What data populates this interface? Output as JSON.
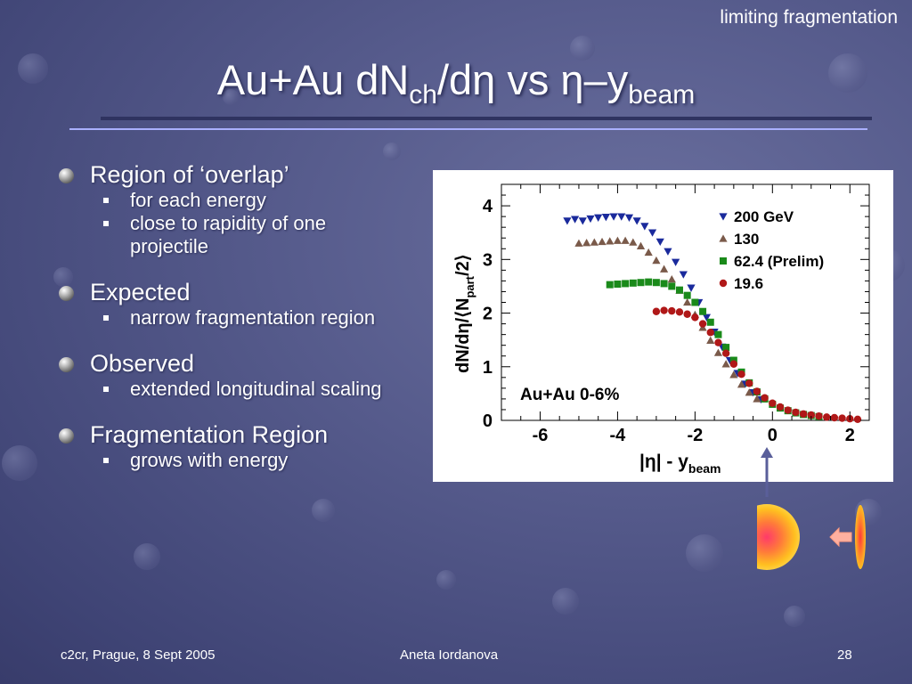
{
  "corner_label": "limiting fragmentation",
  "title": {
    "pre": "Au+Au dN",
    "sub1": "ch",
    "mid": "/dη vs η–y",
    "sub2": "beam"
  },
  "bullets": [
    {
      "text": "Region of ‘overlap’",
      "subs": [
        "for each energy",
        "close to rapidity of one projectile"
      ]
    },
    {
      "text": "Expected",
      "subs": [
        "narrow fragmentation region"
      ]
    },
    {
      "text": "Observed",
      "subs": [
        "extended longitudinal scaling"
      ]
    },
    {
      "text": "Fragmentation Region",
      "subs": [
        "grows with energy"
      ]
    }
  ],
  "footer": {
    "left": "c2cr, Prague, 8 Sept 2005",
    "center": "Aneta Iordanova",
    "right": "28"
  },
  "chart_data": {
    "type": "scatter",
    "xlabel": "|η| - y",
    "xlabel_sub": "beam",
    "ylabel": "dN/dη/⟨N",
    "ylabel_sub": "part",
    "ylabel_end": "/2⟩",
    "xlim": [
      -7,
      2.5
    ],
    "ylim": [
      0,
      4.4
    ],
    "x_ticks": [
      -6,
      -4,
      -2,
      0,
      2
    ],
    "y_ticks": [
      0,
      1,
      2,
      3,
      4
    ],
    "annotation": "Au+Au 0-6%",
    "legend_placement": "top-right",
    "series": [
      {
        "name": "200 GeV",
        "marker": "triangle-down",
        "color": "#1a2a9c",
        "points": [
          [
            -5.3,
            3.72
          ],
          [
            -5.1,
            3.75
          ],
          [
            -4.9,
            3.72
          ],
          [
            -4.7,
            3.76
          ],
          [
            -4.5,
            3.78
          ],
          [
            -4.3,
            3.79
          ],
          [
            -4.1,
            3.8
          ],
          [
            -3.9,
            3.8
          ],
          [
            -3.7,
            3.78
          ],
          [
            -3.5,
            3.72
          ],
          [
            -3.3,
            3.62
          ],
          [
            -3.1,
            3.5
          ],
          [
            -2.9,
            3.33
          ],
          [
            -2.7,
            3.15
          ],
          [
            -2.5,
            2.95
          ],
          [
            -2.3,
            2.72
          ],
          [
            -2.1,
            2.47
          ],
          [
            -1.9,
            2.2
          ],
          [
            -1.7,
            1.92
          ],
          [
            -1.5,
            1.65
          ],
          [
            -1.3,
            1.37
          ],
          [
            -1.1,
            1.12
          ],
          [
            -0.9,
            0.88
          ],
          [
            -0.7,
            0.68
          ],
          [
            -0.5,
            0.52
          ],
          [
            -0.3,
            0.39
          ]
        ]
      },
      {
        "name": "130",
        "marker": "triangle-up",
        "color": "#7a5a4a",
        "points": [
          [
            -5.0,
            3.3
          ],
          [
            -4.8,
            3.31
          ],
          [
            -4.6,
            3.32
          ],
          [
            -4.4,
            3.33
          ],
          [
            -4.2,
            3.34
          ],
          [
            -4.0,
            3.35
          ],
          [
            -3.8,
            3.35
          ],
          [
            -3.6,
            3.32
          ],
          [
            -3.4,
            3.25
          ],
          [
            -3.2,
            3.13
          ],
          [
            -3.0,
            2.98
          ],
          [
            -2.8,
            2.82
          ],
          [
            -2.6,
            2.63
          ],
          [
            -2.4,
            2.42
          ],
          [
            -2.2,
            2.2
          ],
          [
            -2.0,
            1.97
          ],
          [
            -1.8,
            1.73
          ],
          [
            -1.6,
            1.49
          ],
          [
            -1.4,
            1.26
          ],
          [
            -1.2,
            1.05
          ],
          [
            -1.0,
            0.85
          ],
          [
            -0.8,
            0.67
          ],
          [
            -0.6,
            0.52
          ],
          [
            -0.4,
            0.4
          ]
        ]
      },
      {
        "name": "62.4  (Prelim)",
        "marker": "square",
        "color": "#1a8a1a",
        "points": [
          [
            -4.2,
            2.53
          ],
          [
            -4.0,
            2.54
          ],
          [
            -3.8,
            2.55
          ],
          [
            -3.6,
            2.56
          ],
          [
            -3.4,
            2.57
          ],
          [
            -3.2,
            2.58
          ],
          [
            -3.0,
            2.57
          ],
          [
            -2.8,
            2.55
          ],
          [
            -2.6,
            2.5
          ],
          [
            -2.4,
            2.43
          ],
          [
            -2.2,
            2.33
          ],
          [
            -2.0,
            2.2
          ],
          [
            -1.8,
            2.03
          ],
          [
            -1.6,
            1.83
          ],
          [
            -1.4,
            1.6
          ],
          [
            -1.2,
            1.36
          ],
          [
            -1.0,
            1.12
          ],
          [
            -0.8,
            0.9
          ],
          [
            -0.6,
            0.7
          ],
          [
            -0.4,
            0.53
          ],
          [
            -0.2,
            0.4
          ],
          [
            0.0,
            0.3
          ],
          [
            0.2,
            0.23
          ],
          [
            0.4,
            0.18
          ],
          [
            0.6,
            0.14
          ],
          [
            0.8,
            0.11
          ],
          [
            1.0,
            0.09
          ],
          [
            1.2,
            0.07
          ]
        ]
      },
      {
        "name": "19.6",
        "marker": "circle",
        "color": "#b01818",
        "points": [
          [
            -3.0,
            2.03
          ],
          [
            -2.8,
            2.05
          ],
          [
            -2.6,
            2.04
          ],
          [
            -2.4,
            2.02
          ],
          [
            -2.2,
            1.98
          ],
          [
            -2.0,
            1.92
          ],
          [
            -1.8,
            1.8
          ],
          [
            -1.6,
            1.64
          ],
          [
            -1.4,
            1.45
          ],
          [
            -1.2,
            1.25
          ],
          [
            -1.0,
            1.05
          ],
          [
            -0.8,
            0.86
          ],
          [
            -0.6,
            0.69
          ],
          [
            -0.4,
            0.54
          ],
          [
            -0.2,
            0.42
          ],
          [
            0.0,
            0.32
          ],
          [
            0.2,
            0.25
          ],
          [
            0.4,
            0.19
          ],
          [
            0.6,
            0.15
          ],
          [
            0.8,
            0.12
          ],
          [
            1.0,
            0.1
          ],
          [
            1.2,
            0.08
          ],
          [
            1.4,
            0.06
          ],
          [
            1.6,
            0.05
          ],
          [
            1.8,
            0.04
          ],
          [
            2.0,
            0.03
          ],
          [
            2.2,
            0.02
          ]
        ]
      }
    ]
  }
}
